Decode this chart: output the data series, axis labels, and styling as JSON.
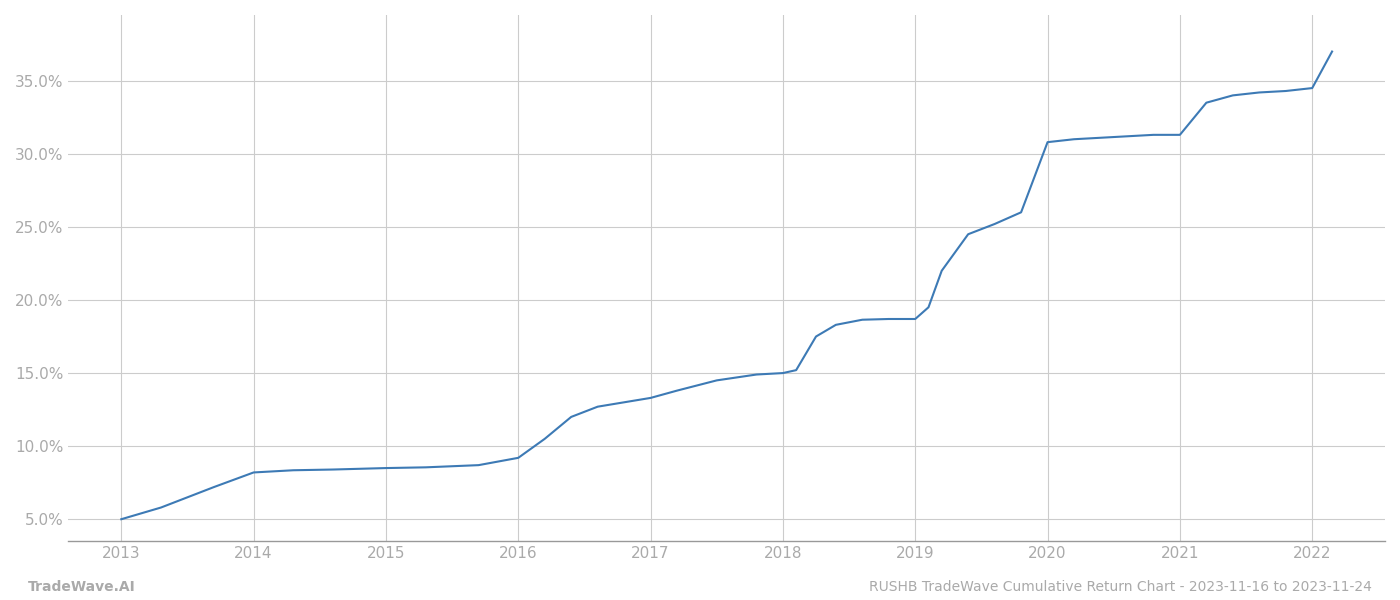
{
  "x_values": [
    2013.0,
    2013.3,
    2013.7,
    2014.0,
    2014.3,
    2014.6,
    2015.0,
    2015.3,
    2015.7,
    2016.0,
    2016.2,
    2016.4,
    2016.6,
    2016.8,
    2017.0,
    2017.2,
    2017.5,
    2017.8,
    2018.0,
    2018.1,
    2018.25,
    2018.4,
    2018.6,
    2018.8,
    2019.0,
    2019.1,
    2019.2,
    2019.4,
    2019.6,
    2019.8,
    2020.0,
    2020.2,
    2020.4,
    2020.6,
    2020.8,
    2021.0,
    2021.2,
    2021.4,
    2021.6,
    2021.8,
    2022.0,
    2022.15
  ],
  "y_values": [
    5.0,
    5.8,
    7.2,
    8.2,
    8.35,
    8.4,
    8.5,
    8.55,
    8.7,
    9.2,
    10.5,
    12.0,
    12.7,
    13.0,
    13.3,
    13.8,
    14.5,
    14.9,
    15.0,
    15.2,
    17.5,
    18.3,
    18.65,
    18.7,
    18.7,
    19.5,
    22.0,
    24.5,
    25.2,
    26.0,
    30.8,
    31.0,
    31.1,
    31.2,
    31.3,
    31.3,
    33.5,
    34.0,
    34.2,
    34.3,
    34.5,
    37.0
  ],
  "line_color": "#3d7ab5",
  "background_color": "#ffffff",
  "grid_color": "#cccccc",
  "x_tick_labels": [
    "2013",
    "2014",
    "2015",
    "2016",
    "2017",
    "2018",
    "2019",
    "2020",
    "2021",
    "2022"
  ],
  "x_tick_positions": [
    2013,
    2014,
    2015,
    2016,
    2017,
    2018,
    2019,
    2020,
    2021,
    2022
  ],
  "y_ticks": [
    5.0,
    10.0,
    15.0,
    20.0,
    25.0,
    30.0,
    35.0
  ],
  "xlim": [
    2012.6,
    2022.55
  ],
  "ylim": [
    3.5,
    39.5
  ],
  "footer_left": "TradeWave.AI",
  "footer_right": "RUSHB TradeWave Cumulative Return Chart - 2023-11-16 to 2023-11-24",
  "tick_color": "#aaaaaa",
  "label_fontsize": 11,
  "footer_fontsize": 10,
  "line_width": 1.5,
  "spine_color": "#999999"
}
